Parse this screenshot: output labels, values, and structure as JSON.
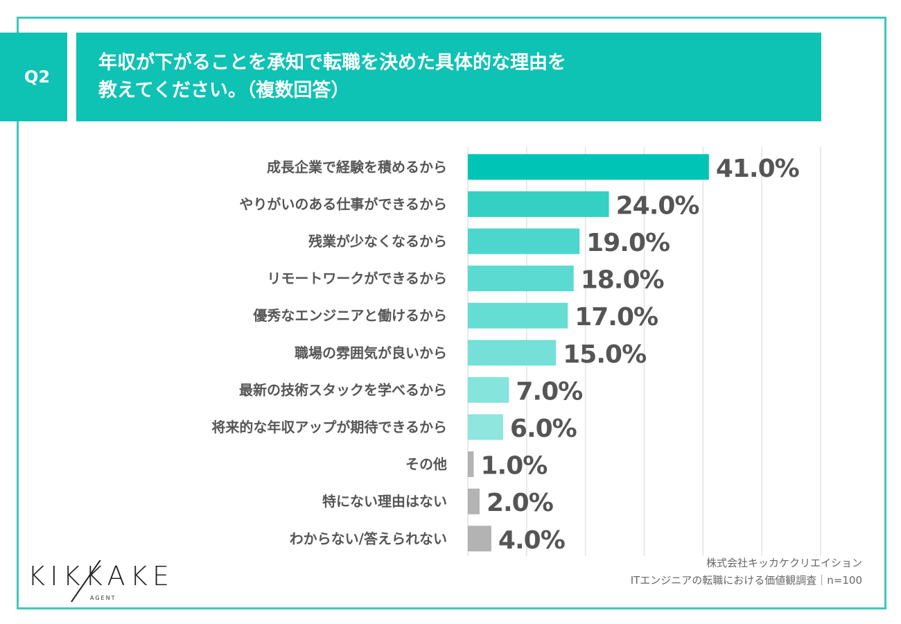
{
  "question": {
    "number": "Q2",
    "title_line1": "年収が下がることを承知で転職を決めた具体的な理由を",
    "title_line2": "教えてください。（複数回答）"
  },
  "chart_data": {
    "type": "bar",
    "orientation": "horizontal",
    "categories": [
      "成長企業で経験を積めるから",
      "やりがいのある仕事ができるから",
      "残業が少なくなるから",
      "リモートワークができるから",
      "優秀なエンジニアと働けるから",
      "職場の雰囲気が良いから",
      "最新の技術スタックを学べるから",
      "将来的な年収アップが期待できるから",
      "その他",
      "特にない理由はない",
      "わからない/答えられない"
    ],
    "values": [
      41.0,
      24.0,
      19.0,
      18.0,
      17.0,
      15.0,
      7.0,
      6.0,
      1.0,
      2.0,
      4.0
    ],
    "labels": [
      "41.0%",
      "24.0%",
      "19.0%",
      "18.0%",
      "17.0%",
      "15.0%",
      "7.0%",
      "6.0%",
      "1.0%",
      "2.0%",
      "4.0%"
    ],
    "colors": [
      "#00c4b6",
      "#33d0c3",
      "#4dd7cc",
      "#5adad0",
      "#66ddd3",
      "#75e0d7",
      "#85e4dc",
      "#8ee6de",
      "#b3b3b3",
      "#b3b3b3",
      "#b3b3b3"
    ],
    "xlim": [
      0,
      60
    ],
    "grid": true,
    "unit": "%"
  },
  "footer": {
    "company": "株式会社キッカケクリエイション",
    "survey": "ITエンジニアの転職における価値観調査｜n=100"
  },
  "logo": {
    "text": "KIKKAKE",
    "sub": "AGENT"
  },
  "colors": {
    "accent": "#0ec2b4",
    "frame": "#3cc8bb"
  }
}
